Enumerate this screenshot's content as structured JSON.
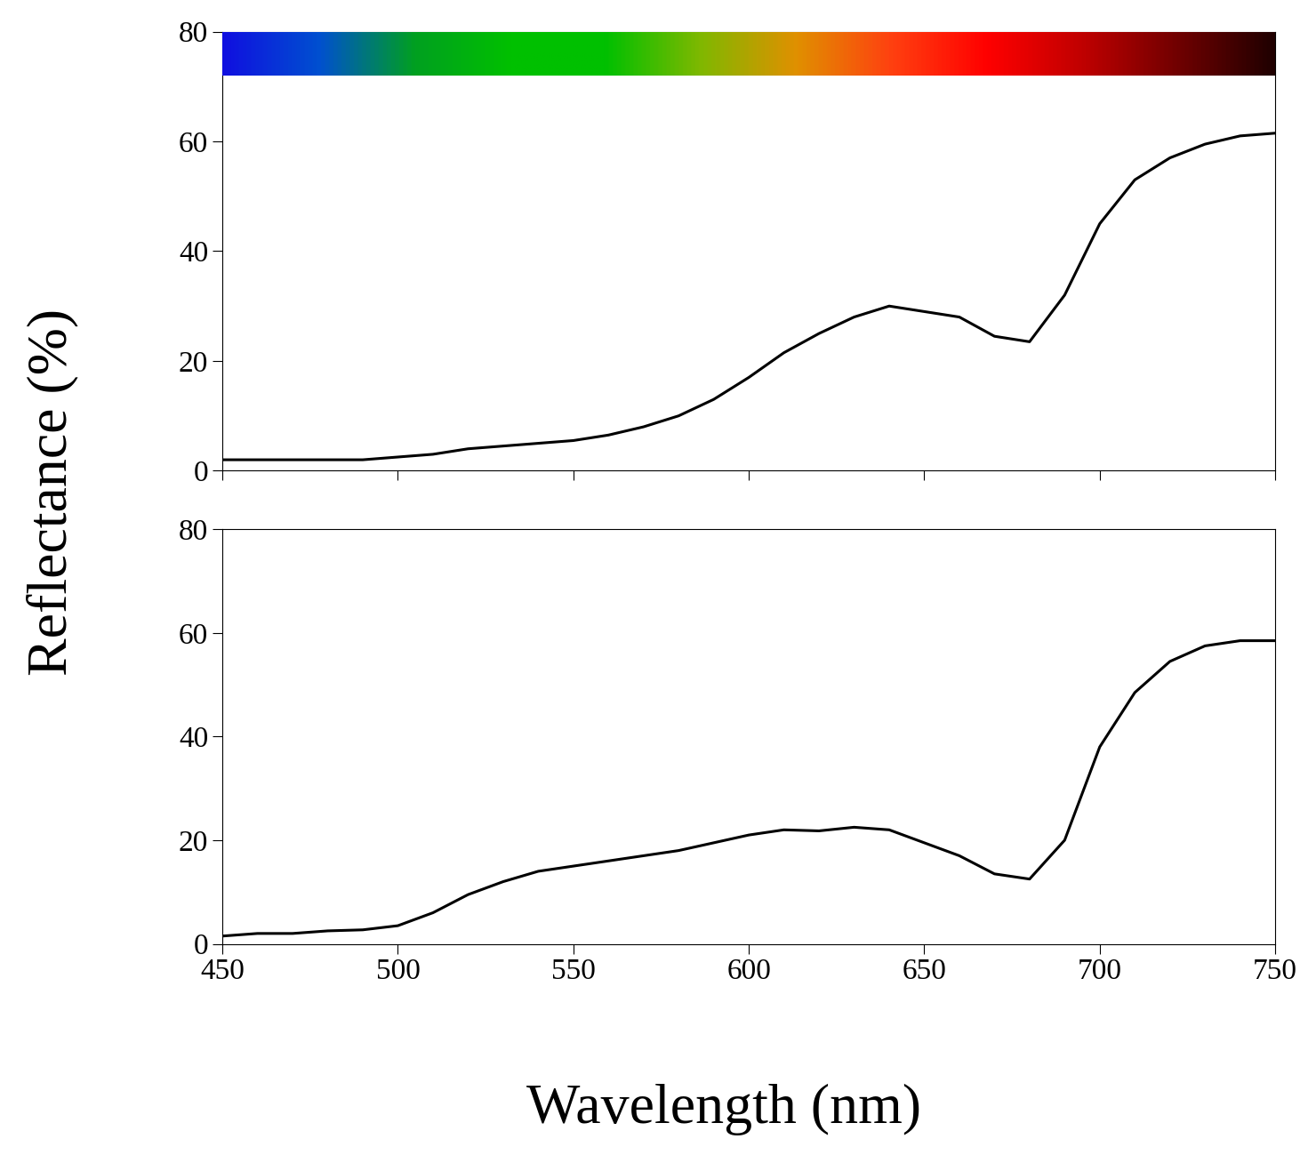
{
  "xlabel": "Wavelength (nm)",
  "ylabel": "Reflectance (%)",
  "chart_data": [
    {
      "type": "line",
      "tick_labels": "y",
      "x": [
        450,
        460,
        470,
        480,
        490,
        500,
        510,
        520,
        530,
        540,
        550,
        560,
        570,
        580,
        590,
        600,
        610,
        620,
        630,
        640,
        650,
        660,
        670,
        680,
        690,
        700,
        710,
        720,
        730,
        740,
        750
      ],
      "values": [
        2,
        2,
        2,
        2,
        2,
        2.5,
        3,
        4,
        4.5,
        5,
        5.5,
        6.5,
        8,
        10,
        13,
        17,
        21.5,
        25,
        28,
        30,
        29,
        28,
        24.5,
        23.5,
        32,
        45,
        53,
        57,
        59.5,
        61,
        61.5
      ],
      "color": "#000000",
      "xlim": [
        450,
        750
      ],
      "xticks": [
        450,
        500,
        550,
        600,
        650,
        700,
        750
      ],
      "ylim": [
        0,
        80
      ],
      "yticks": [
        0,
        20,
        40,
        60,
        80
      ]
    },
    {
      "type": "line",
      "x": [
        450,
        460,
        470,
        480,
        490,
        500,
        510,
        520,
        530,
        540,
        550,
        560,
        570,
        580,
        590,
        600,
        610,
        620,
        630,
        640,
        650,
        660,
        670,
        680,
        690,
        700,
        710,
        720,
        730,
        740,
        750
      ],
      "values": [
        1.5,
        2,
        2,
        2.5,
        2.7,
        3.5,
        6,
        9.5,
        12,
        14,
        15,
        16,
        17,
        18,
        19.5,
        21,
        22,
        21.8,
        22.5,
        22,
        19.5,
        17,
        13.5,
        12.5,
        20,
        38,
        48.5,
        54.5,
        57.5,
        58.5,
        58.5
      ],
      "color": "#000000",
      "xlim": [
        450,
        750
      ],
      "xticks": [
        450,
        500,
        550,
        600,
        650,
        700,
        750
      ],
      "ylim": [
        0,
        80
      ],
      "yticks": [
        0,
        20,
        40,
        60,
        80
      ]
    }
  ]
}
